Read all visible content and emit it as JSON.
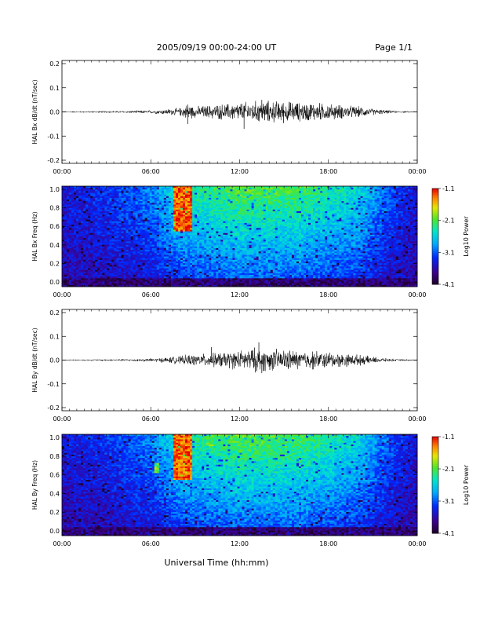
{
  "header": {
    "title": "2005/09/19   00:00-24:00 UT",
    "page": "Page 1/1"
  },
  "footer": {
    "xlabel": "Universal Time (hh:mm)"
  },
  "chart_data": [
    {
      "type": "line",
      "ylabel": "HAL Bx dB/dt (nT/sec)",
      "ylim": [
        -0.2,
        0.2
      ],
      "yticks": [
        "0.2",
        "0.1",
        "0.0",
        "-0.1",
        "-0.2"
      ],
      "x_ticks": [
        "00:00",
        "06:00",
        "12:00",
        "18:00",
        "00:00"
      ],
      "envelope": {
        "x_hours": [
          0,
          2,
          4,
          6,
          7,
          8,
          8.5,
          9,
          10,
          11,
          12,
          13,
          14,
          15,
          16,
          17,
          18,
          19,
          20,
          21,
          22,
          23,
          24
        ],
        "amplitude": [
          0.002,
          0.003,
          0.004,
          0.006,
          0.01,
          0.015,
          0.03,
          0.02,
          0.025,
          0.03,
          0.035,
          0.04,
          0.04,
          0.04,
          0.035,
          0.035,
          0.03,
          0.025,
          0.02,
          0.012,
          0.006,
          0.003,
          0.002
        ]
      },
      "spikes": [
        {
          "x_hours": 8.5,
          "value": -0.05
        },
        {
          "x_hours": 8.5,
          "value": 0.03
        },
        {
          "x_hours": 12.3,
          "value": -0.07
        },
        {
          "x_hours": 13.5,
          "value": 0.05
        }
      ]
    },
    {
      "type": "heatmap",
      "ylabel": "HAL Bx Freq (Hz)",
      "ylim": [
        0.0,
        1.0
      ],
      "yticks": [
        "1.0",
        "0.8",
        "0.6",
        "0.4",
        "0.2",
        "0.0"
      ],
      "x_ticks": [
        "00:00",
        "06:00",
        "12:00",
        "18:00",
        "00:00"
      ],
      "colorbar": {
        "label": "Log10 Power",
        "ticks": [
          "-1.1",
          "-2.1",
          "-3.1",
          "-4.1"
        ],
        "range": [
          -4.1,
          -1.1
        ]
      },
      "features": [
        {
          "x_start_hours": 7.5,
          "x_end_hours": 8.8,
          "f_low": 0.55,
          "f_high": 1.0,
          "log_power": -1.3
        }
      ]
    },
    {
      "type": "line",
      "ylabel": "HAL By dB/dt (nT/sec)",
      "ylim": [
        -0.2,
        0.2
      ],
      "yticks": [
        "0.2",
        "0.1",
        "0.0",
        "-0.1",
        "-0.2"
      ],
      "x_ticks": [
        "00:00",
        "06:00",
        "12:00",
        "18:00",
        "00:00"
      ],
      "envelope": {
        "x_hours": [
          0,
          2,
          4,
          6,
          7,
          8,
          8.5,
          9,
          10,
          11,
          12,
          13,
          14,
          15,
          16,
          17,
          18,
          19,
          20,
          21,
          22,
          23,
          24
        ],
        "amplitude": [
          0.002,
          0.003,
          0.004,
          0.006,
          0.01,
          0.015,
          0.02,
          0.02,
          0.025,
          0.03,
          0.035,
          0.045,
          0.04,
          0.04,
          0.035,
          0.035,
          0.03,
          0.025,
          0.02,
          0.012,
          0.006,
          0.003,
          0.002
        ]
      },
      "spikes": [
        {
          "x_hours": 13.3,
          "value": 0.075
        },
        {
          "x_hours": 13.5,
          "value": -0.055
        },
        {
          "x_hours": 10.1,
          "value": 0.055
        }
      ]
    },
    {
      "type": "heatmap",
      "ylabel": "HAL By Freq (Hz)",
      "ylim": [
        0.0,
        1.0
      ],
      "yticks": [
        "1.0",
        "0.8",
        "0.6",
        "0.4",
        "0.2",
        "0.0"
      ],
      "x_ticks": [
        "00:00",
        "06:00",
        "12:00",
        "18:00",
        "00:00"
      ],
      "colorbar": {
        "label": "Log10 Power",
        "ticks": [
          "-1.1",
          "-2.1",
          "-3.1",
          "-4.1"
        ],
        "range": [
          -4.1,
          -1.1
        ]
      },
      "features": [
        {
          "x_start_hours": 7.5,
          "x_end_hours": 8.8,
          "f_low": 0.55,
          "f_high": 1.0,
          "log_power": -1.3
        },
        {
          "x_start_hours": 6.2,
          "x_end_hours": 6.6,
          "f_low": 0.62,
          "f_high": 0.72,
          "log_power": -2.1
        },
        {
          "x_start_hours": 9.8,
          "x_end_hours": 10.3,
          "f_low": 0.88,
          "f_high": 0.98,
          "log_power": -2.1
        }
      ]
    }
  ]
}
